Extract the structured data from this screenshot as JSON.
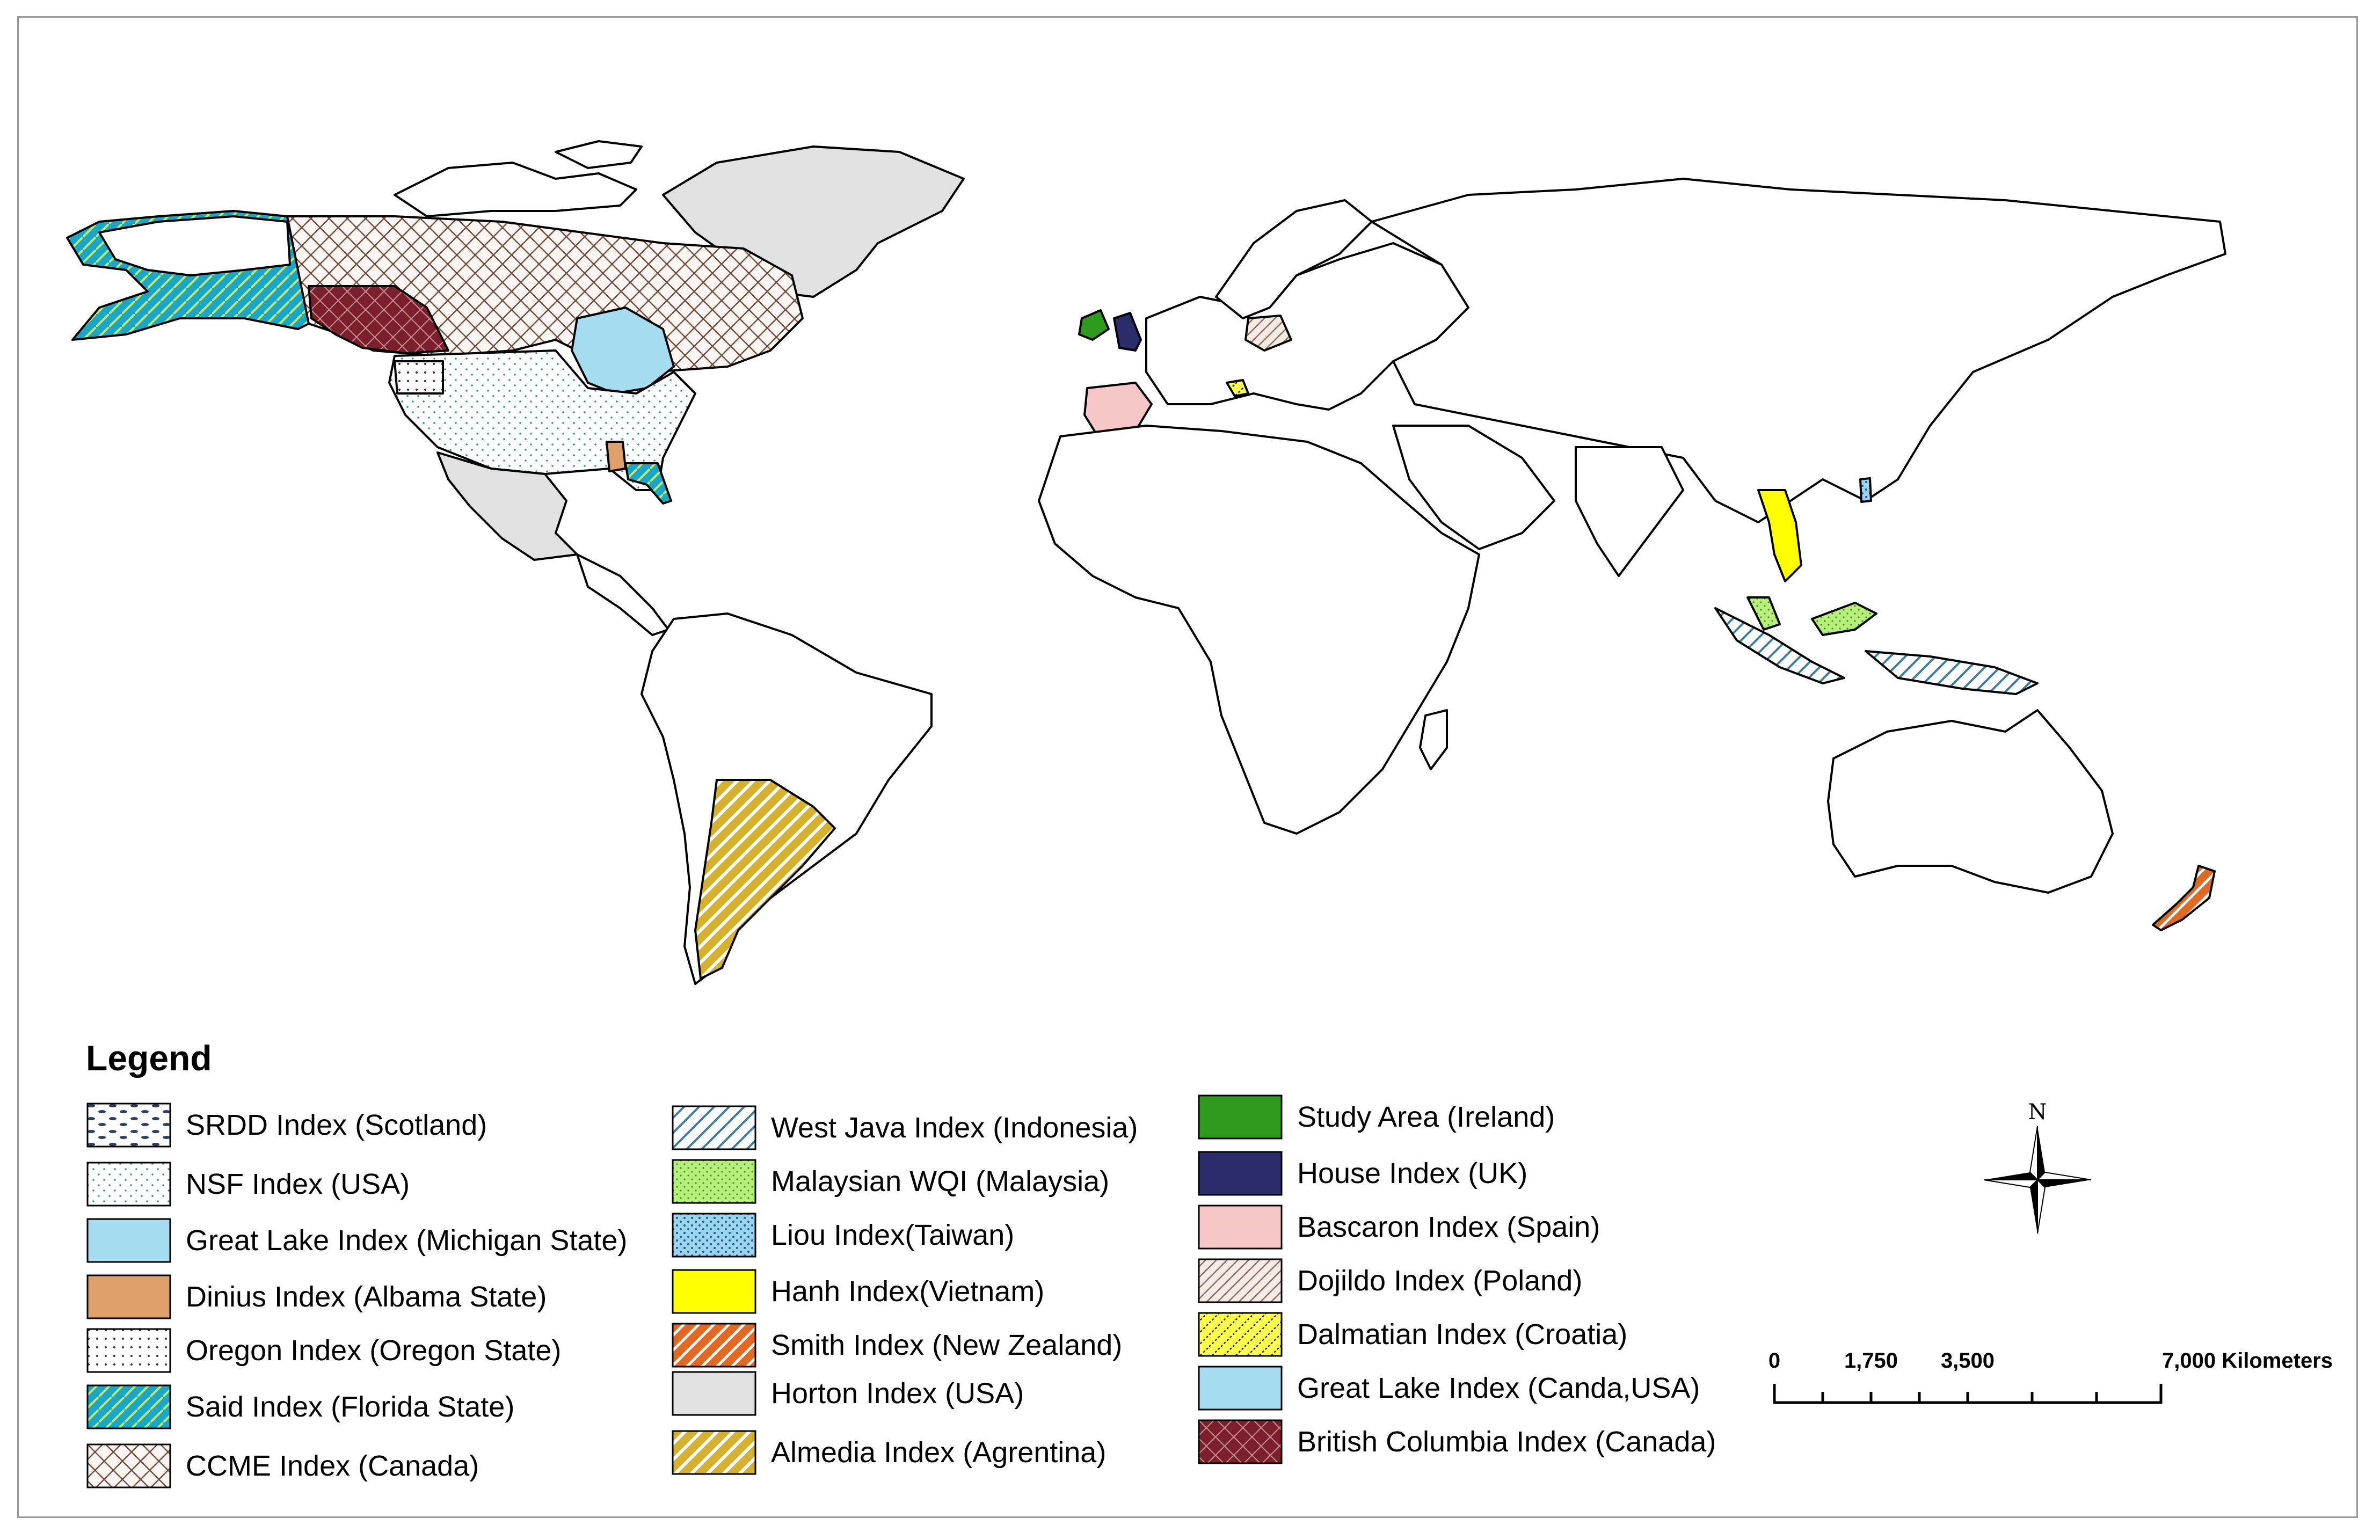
{
  "legend": {
    "title": "Legend",
    "items": [
      {
        "label": "SRDD Index (Scotland)",
        "pattern": "pat-srdd"
      },
      {
        "label": "NSF Index (USA)",
        "pattern": "pat-nsf"
      },
      {
        "label": "Great Lake Index (Michigan State)",
        "pattern": "pat-greatlake-mi"
      },
      {
        "label": "Dinius Index (Albama State)",
        "pattern": "pat-dinius"
      },
      {
        "label": "Oregon Index (Oregon State)",
        "pattern": "pat-oregon"
      },
      {
        "label": "Said Index (Florida State)",
        "pattern": "pat-said"
      },
      {
        "label": "CCME Index (Canada)",
        "pattern": "pat-ccme"
      },
      {
        "label": "West Java Index (Indonesia)",
        "pattern": "pat-westjava"
      },
      {
        "label": "Malaysian WQI (Malaysia)",
        "pattern": "pat-malaysia"
      },
      {
        "label": "Liou Index(Taiwan)",
        "pattern": "pat-liou"
      },
      {
        "label": "Hanh Index(Vietnam)",
        "pattern": "pat-hanh"
      },
      {
        "label": "Smith Index (New Zealand)",
        "pattern": "pat-smith"
      },
      {
        "label": "Horton Index (USA)",
        "pattern": "pat-horton"
      },
      {
        "label": "Almedia Index (Agrentina)",
        "pattern": "pat-almedia"
      },
      {
        "label": "Study Area (Ireland)",
        "pattern": "pat-study"
      },
      {
        "label": "House Index (UK)",
        "pattern": "pat-house"
      },
      {
        "label": "Bascaron Index (Spain)",
        "pattern": "pat-bascaron"
      },
      {
        "label": "Dojildo Index (Poland)",
        "pattern": "pat-dojildo"
      },
      {
        "label": "Dalmatian Index (Croatia)",
        "pattern": "pat-dalmatian"
      },
      {
        "label": "Great Lake Index (Canda,USA)",
        "pattern": "pat-greatlake-ca"
      },
      {
        "label": "British Columbia Index (Canada)",
        "pattern": "pat-bc"
      }
    ]
  },
  "scale_bar": {
    "ticks": [
      "0",
      "1,750",
      "3,500",
      "7,000 Kilometers"
    ]
  },
  "north_arrow": {
    "label": "N"
  },
  "colors": {
    "study_green": "#2f9a1e",
    "house_navy": "#2b2d6b",
    "bascaron_pink": "#f7c6c7",
    "greatlake_blue": "#a6dcf0",
    "dinius_orange": "#e0a06c",
    "hanh_yellow": "#ffff00",
    "horton_gray": "#e1e1e1",
    "bc_maroon": "#7a1f2b",
    "smith_orange": "#e06a24",
    "almedia_gold": "#d4b12f",
    "said_teal": "#1aa6c4"
  }
}
